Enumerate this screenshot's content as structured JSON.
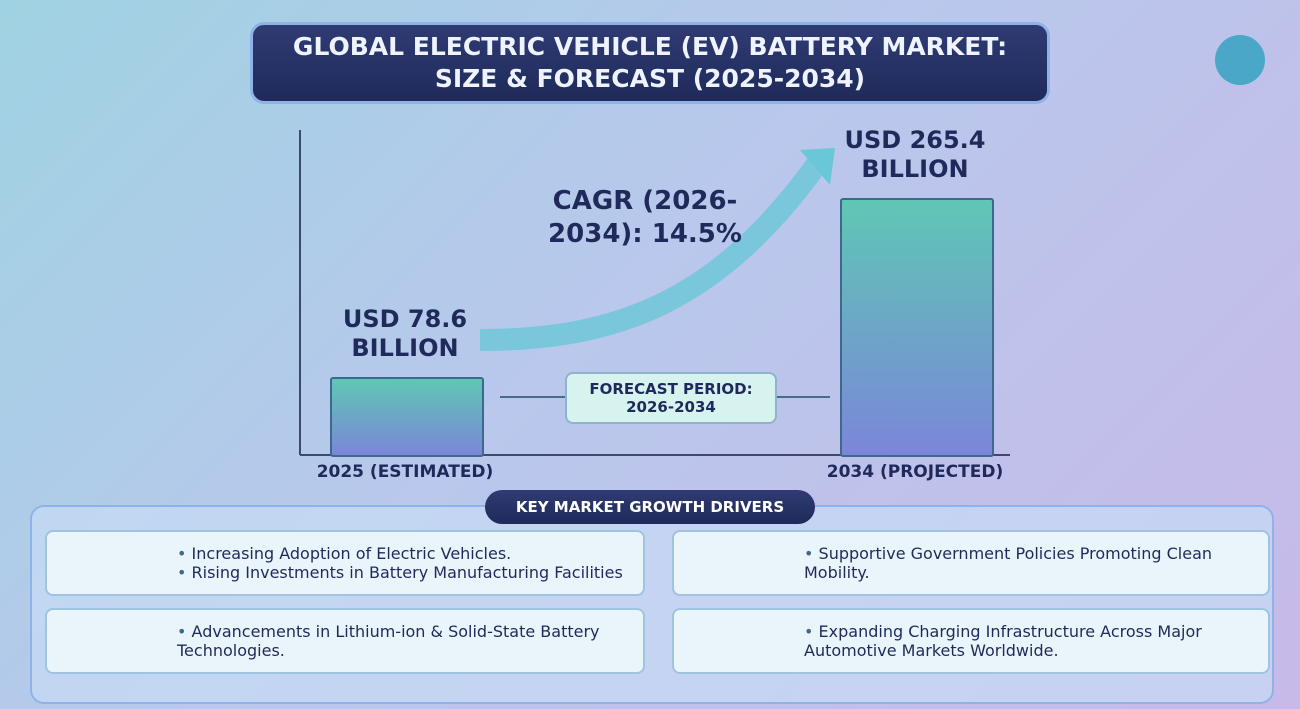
{
  "title": "GLOBAL ELECTRIC VEHICLE (EV) BATTERY MARKET: SIZE & FORECAST (2025-2034)",
  "chart_data": {
    "type": "bar",
    "categories": [
      "2025 (ESTIMATED)",
      "2034 (PROJECTED)"
    ],
    "values": [
      78.6,
      265.4
    ],
    "value_labels": [
      "USD 78.6 BILLION",
      "USD 265.4 BILLION"
    ],
    "color": "#5fc7b4",
    "annotations": [
      "CAGR (2026-2034): 14.5%",
      "FORECAST PERIOD: 2026-2034"
    ]
  },
  "drivers": {
    "title": "KEY MARKET GROWTH DRIVERS",
    "boxes": [
      [
        "Increasing Adoption of Electric Vehicles.",
        "Rising Investments in Battery Manufacturing Facilities"
      ],
      [
        "Supportive Government Policies Promoting Clean Mobility."
      ],
      [
        "Advancements in Lithium-ion & Solid-State Battery Technologies."
      ],
      [
        "Expanding Charging Infrastructure Across Major Automotive Markets Worldwide."
      ]
    ]
  }
}
